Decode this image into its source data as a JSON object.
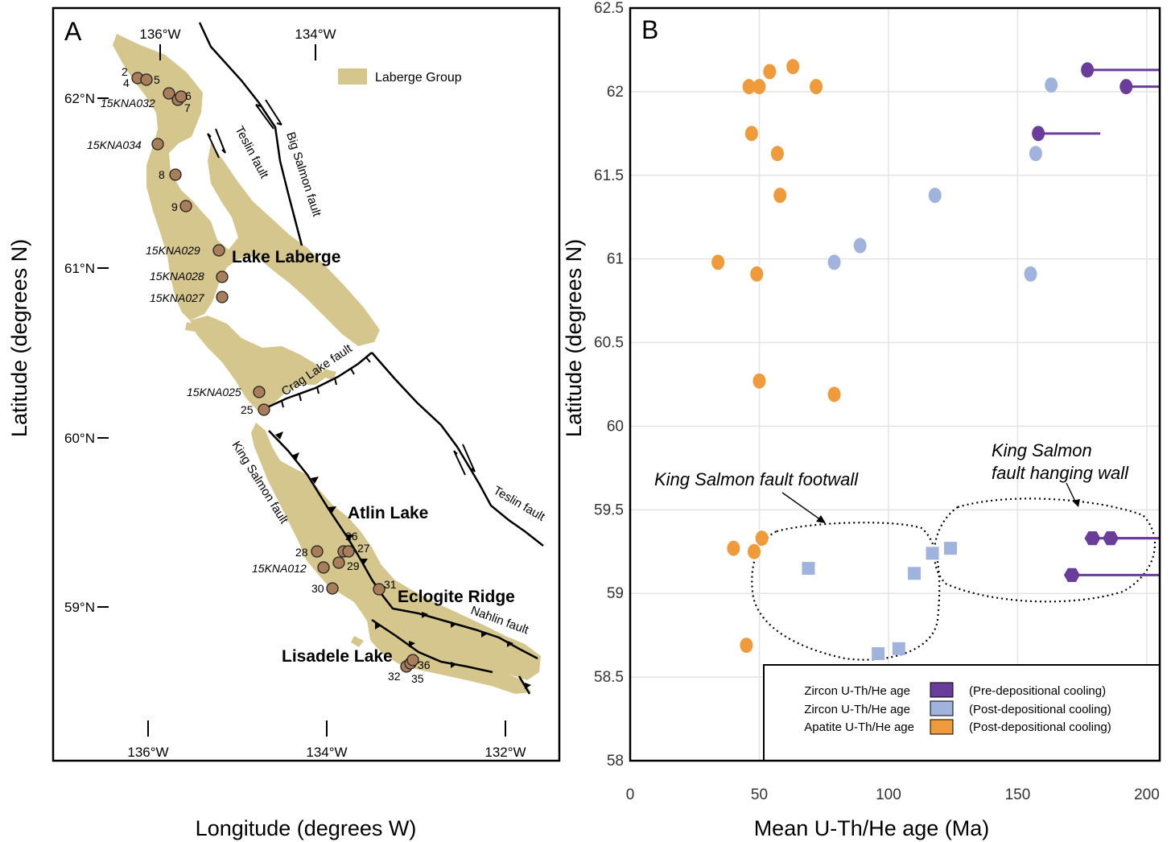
{
  "panel_a": {
    "label": "A",
    "legend_label": "Laberge Group",
    "legend_color": "#d4c68c",
    "deposit_color": "#d4c68c",
    "ylabel": "Latitude (degrees N)",
    "xlabel": "Longitude (degrees W)",
    "top_ticks": [
      "136°W",
      "134°W"
    ],
    "bottom_ticks": [
      "136°W",
      "134°W",
      "132°W"
    ],
    "lat_ticks": [
      "62°N",
      "61°N",
      "60°N",
      "59°N"
    ],
    "places": [
      "Lake Laberge",
      "Atlin Lake",
      "Eclogite Ridge",
      "Lisadele Lake"
    ],
    "faults": [
      "Big Salmon fault",
      "Teslin fault",
      "Crag Lake fault",
      "Teslin fault",
      "King Salmon fault",
      "Nahlin fault"
    ],
    "samples": [
      {
        "label": "2"
      },
      {
        "label": "4"
      },
      {
        "label": "5"
      },
      {
        "label": "6"
      },
      {
        "label": "7"
      },
      {
        "label": "15KNA032"
      },
      {
        "label": "15KNA034"
      },
      {
        "label": "8"
      },
      {
        "label": "9"
      },
      {
        "label": "15KNA029"
      },
      {
        "label": "15KNA028"
      },
      {
        "label": "15KNA027"
      },
      {
        "label": "15KNA025"
      },
      {
        "label": "25"
      },
      {
        "label": "26"
      },
      {
        "label": "27"
      },
      {
        "label": "28"
      },
      {
        "label": "29"
      },
      {
        "label": "15KNA012"
      },
      {
        "label": "30"
      },
      {
        "label": "31"
      },
      {
        "label": "32"
      },
      {
        "label": "35"
      },
      {
        "label": "36"
      }
    ]
  },
  "panel_b": {
    "label": "B",
    "annotations": [
      "King Salmon fault footwall",
      "King Salmon",
      "fault hanging wall"
    ],
    "legend": [
      {
        "name": "Zircon U-Th/He age",
        "desc": "(Pre-depositional cooling)",
        "color": "#6a3d9a"
      },
      {
        "name": "Zircon U-Th/He age",
        "desc": "(Post-depositional cooling)",
        "color": "#9fb3dd"
      },
      {
        "name": "Apatite U-Th/He age",
        "desc": "(Post-depositional cooling)",
        "color": "#ef9b3c"
      }
    ]
  },
  "chart_data": {
    "type": "scatter",
    "xlabel": "Mean U-Th/He age (Ma)",
    "ylabel": "Latitude (degrees N)",
    "xlim": [
      0,
      205
    ],
    "ylim": [
      58,
      62.5
    ],
    "xticks": [
      "0",
      "50",
      "100",
      "150",
      "200"
    ],
    "yticks": [
      "58",
      "58.5",
      "59",
      "59.5",
      "60",
      "60.5",
      "61",
      "61.5",
      "62",
      "62.5"
    ],
    "grid": true,
    "legend_position": "bottom-right",
    "series": [
      {
        "name": "Apatite U-Th/He age (Post-depositional cooling)",
        "color": "#ef9b3c",
        "marker": "circle",
        "points": [
          [
            46,
            62.03
          ],
          [
            50,
            62.03
          ],
          [
            54,
            62.12
          ],
          [
            63,
            62.15
          ],
          [
            72,
            62.03
          ],
          [
            47,
            61.75
          ],
          [
            57,
            61.63
          ],
          [
            58,
            61.38
          ],
          [
            34,
            60.98
          ],
          [
            49,
            60.91
          ],
          [
            50,
            60.27
          ],
          [
            79,
            60.19
          ],
          [
            40,
            59.27
          ],
          [
            48,
            59.25
          ],
          [
            51,
            59.33
          ],
          [
            45,
            58.69
          ]
        ]
      },
      {
        "name": "Zircon U-Th/He age (Post-depositional cooling)",
        "color": "#9fb3dd",
        "marker": "circle",
        "points": [
          [
            163,
            62.04
          ],
          [
            157,
            61.63
          ],
          [
            118,
            61.38
          ],
          [
            89,
            61.08
          ],
          [
            79,
            60.98
          ],
          [
            155,
            60.91
          ]
        ]
      },
      {
        "name": "Zircon U-Th/He age (Post-depositional cooling)",
        "color": "#9fb3dd",
        "marker": "square",
        "points": [
          [
            69,
            59.15
          ],
          [
            96,
            58.64
          ],
          [
            104,
            58.67
          ],
          [
            110,
            59.12
          ],
          [
            117,
            59.24
          ],
          [
            124,
            59.27
          ]
        ]
      },
      {
        "name": "Zircon U-Th/He age (Pre-depositional cooling)",
        "color": "#6a3d9a",
        "marker": "circle",
        "points": [
          {
            "x": 177,
            "y": 62.13,
            "x_end": 205
          },
          {
            "x": 192,
            "y": 62.03,
            "x_end": 205
          },
          {
            "x": 158,
            "y": 61.75,
            "x_end": 182
          }
        ]
      },
      {
        "name": "Zircon U-Th/He age (Pre-depositional cooling)",
        "color": "#6a3d9a",
        "marker": "hexagon",
        "points": [
          {
            "x": 179,
            "y": 59.33,
            "x_end": 205
          },
          {
            "x": 186,
            "y": 59.33,
            "x_end": 205
          },
          {
            "x": 171,
            "y": 59.11,
            "x_end": 205
          }
        ]
      }
    ]
  }
}
